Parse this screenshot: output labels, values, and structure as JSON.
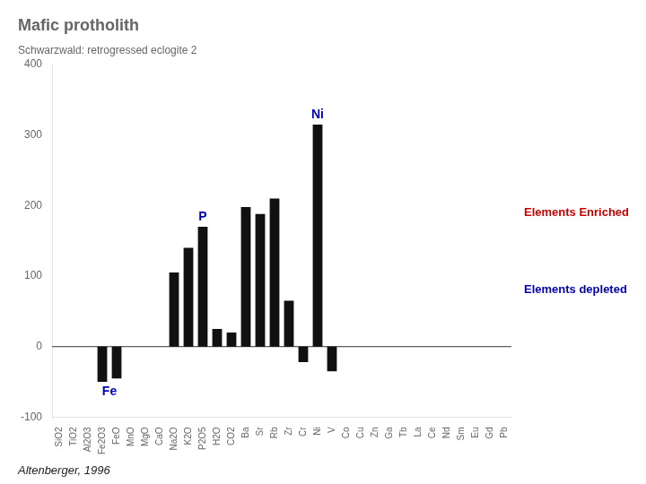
{
  "chart_data": {
    "type": "bar",
    "title": "Mafic protholith",
    "subtitle": "Schwarzwald: retrogressed eclogite 2",
    "citation": "Altenberger, 1996",
    "categories": [
      "SiO2",
      "TiO2",
      "Al2O3",
      "Fe2O3",
      "FeO",
      "MnO",
      "MgO",
      "CaO",
      "Na2O",
      "K2O",
      "P2O5",
      "H2O",
      "CO2",
      "Ba",
      "Sr",
      "Rb",
      "Zr",
      "Cr",
      "Ni",
      "V",
      "Co",
      "Cu",
      "Zn",
      "Ga",
      "Tb",
      "La",
      "Ce",
      "Nd",
      "Sm",
      "Eu",
      "Gd",
      "Pb"
    ],
    "values": [
      0,
      0,
      0,
      -50,
      -45,
      0,
      0,
      0,
      105,
      140,
      170,
      25,
      20,
      198,
      188,
      210,
      65,
      -22,
      315,
      -35,
      0,
      0,
      0,
      0,
      0,
      0,
      0,
      0,
      0,
      0,
      0,
      0
    ],
    "color": "#111111",
    "ylim": [
      -100,
      400
    ],
    "yticks": [
      -100,
      0,
      100,
      200,
      300,
      400
    ],
    "grid": false,
    "annotations": [
      {
        "text": "Ni",
        "color": "#0000bb",
        "category": "Ni"
      },
      {
        "text": "P",
        "color": "#0000bb",
        "category": "P2O5"
      },
      {
        "text": "Fe",
        "color": "#0000bb",
        "category": [
          "Fe2O3",
          "FeO"
        ]
      },
      {
        "text": "Elements Enriched",
        "color": "#cc0000"
      },
      {
        "text": "Elements depleted",
        "color": "#0000bb"
      }
    ]
  }
}
